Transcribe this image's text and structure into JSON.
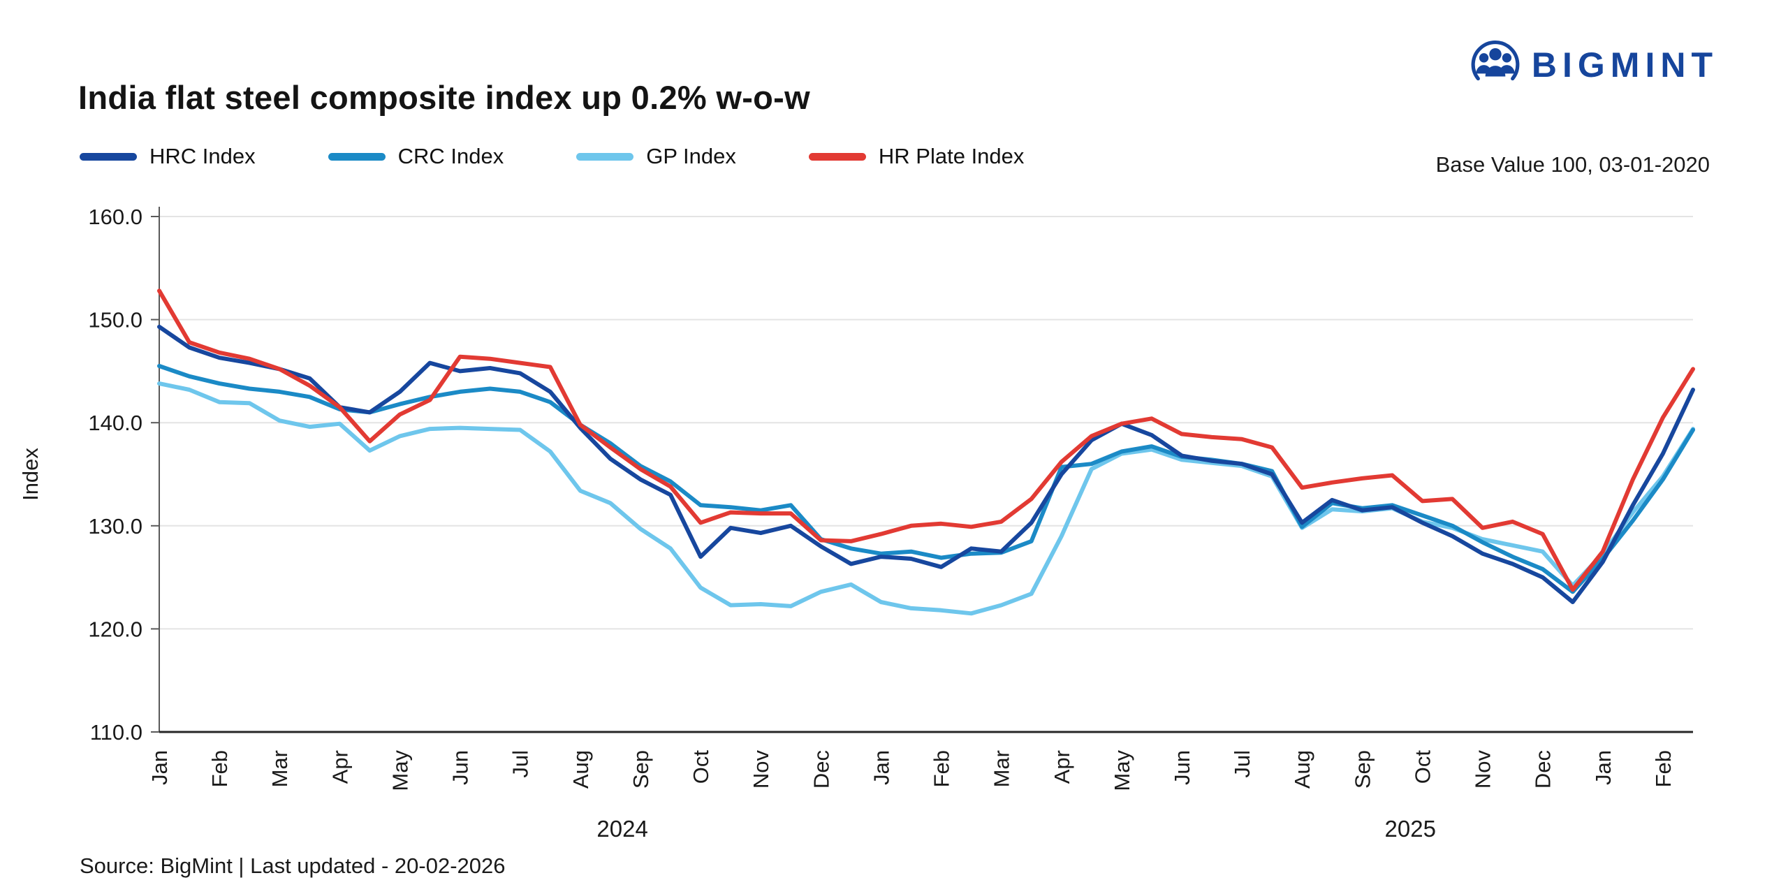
{
  "header": {
    "title": "India flat steel composite index up 0.2% w-o-w",
    "base_note": "Base Value 100, 03-01-2020"
  },
  "logo": {
    "name": "BIGMINT",
    "color": "#16459C"
  },
  "legend": {
    "items": [
      {
        "label": "HRC Index",
        "color": "#17479E"
      },
      {
        "label": "CRC Index",
        "color": "#1B8AC6"
      },
      {
        "label": "GP Index",
        "color": "#6EC6EC"
      },
      {
        "label": "HR Plate Index",
        "color": "#E23A33"
      }
    ]
  },
  "footer": {
    "text": "Source: BigMint | Last updated - 20-02-2026"
  },
  "chart_data": {
    "type": "line",
    "title": "India flat steel composite index up 0.2% w-o-w",
    "xlabel": "",
    "ylabel": "Index",
    "ylim": [
      110,
      160
    ],
    "yticks": [
      110,
      120,
      130,
      140,
      150,
      160
    ],
    "grid": true,
    "legend_position": "top-left",
    "x_unit": "months since Jan 2024 (0 = Jan 2024, 0.5 = mid-month; weekly index data)",
    "month_labels": [
      "Jan",
      "Feb",
      "Mar",
      "Apr",
      "May",
      "Jun",
      "Jul",
      "Aug",
      "Sep",
      "Oct",
      "Nov",
      "Dec",
      "Jan",
      "Feb",
      "Mar",
      "Apr",
      "May",
      "Jun",
      "Jul",
      "Aug",
      "Sep",
      "Oct",
      "Nov",
      "Dec",
      "Jan",
      "Feb"
    ],
    "year_labels": [
      {
        "label": "2024",
        "center_index": 7.7
      },
      {
        "label": "2025",
        "center_index": 20.8
      }
    ],
    "x": [
      0,
      0.5,
      1,
      1.5,
      2,
      2.5,
      3,
      3.5,
      4,
      4.5,
      5,
      5.5,
      6,
      6.5,
      7,
      7.5,
      8,
      8.5,
      9,
      9.5,
      10,
      10.5,
      11,
      11.5,
      12,
      12.5,
      13,
      13.5,
      14,
      14.5,
      15,
      15.5,
      16,
      16.5,
      17,
      17.5,
      18,
      18.5,
      19,
      19.5,
      20,
      20.5,
      21,
      21.5,
      22,
      22.5,
      23,
      23.5,
      24,
      24.5,
      25,
      25.5
    ],
    "series": [
      {
        "name": "HRC Index",
        "color": "#17479E",
        "values": [
          149.3,
          147.3,
          146.3,
          145.8,
          145.2,
          144.3,
          141.5,
          141.0,
          143.0,
          145.8,
          145.0,
          145.3,
          144.8,
          143.0,
          139.5,
          136.5,
          134.5,
          133.0,
          127.0,
          129.8,
          129.3,
          130.0,
          128.0,
          126.3,
          127.0,
          126.8,
          126.0,
          127.8,
          127.5,
          130.3,
          135.0,
          138.3,
          139.9,
          138.8,
          136.8,
          136.3,
          136.0,
          135.0,
          130.3,
          132.5,
          131.5,
          131.8,
          130.3,
          129.0,
          127.3,
          126.3,
          125.0,
          122.6,
          126.5,
          132.0,
          137.0,
          143.2
        ]
      },
      {
        "name": "CRC Index",
        "color": "#1B8AC6",
        "values": [
          145.5,
          144.5,
          143.8,
          143.3,
          143.0,
          142.5,
          141.3,
          141.0,
          141.8,
          142.5,
          143.0,
          143.3,
          143.0,
          142.0,
          139.8,
          138.0,
          135.8,
          134.3,
          132.0,
          131.8,
          131.5,
          132.0,
          128.7,
          127.8,
          127.3,
          127.5,
          126.9,
          127.3,
          127.4,
          128.5,
          135.7,
          136.0,
          137.2,
          137.7,
          136.7,
          136.4,
          136.0,
          135.3,
          129.9,
          132.2,
          131.7,
          132.0,
          131.0,
          130.0,
          128.4,
          127.0,
          125.8,
          123.6,
          126.8,
          130.5,
          134.5,
          139.3
        ]
      },
      {
        "name": "GP Index",
        "color": "#6EC6EC",
        "values": [
          143.8,
          143.2,
          142.0,
          141.9,
          140.2,
          139.6,
          139.9,
          137.3,
          138.7,
          139.4,
          139.5,
          139.4,
          139.3,
          137.2,
          133.4,
          132.2,
          129.7,
          127.8,
          124.0,
          122.3,
          122.4,
          122.2,
          123.6,
          124.3,
          122.6,
          122.0,
          121.8,
          121.5,
          122.3,
          123.4,
          129.0,
          135.5,
          137.0,
          137.4,
          136.4,
          136.1,
          135.8,
          134.8,
          129.8,
          131.6,
          131.4,
          131.7,
          130.4,
          129.8,
          128.7,
          128.1,
          127.5,
          124.2,
          127.3,
          131.3,
          134.8,
          139.4
        ]
      },
      {
        "name": "HR Plate Index",
        "color": "#E23A33",
        "values": [
          152.8,
          147.8,
          146.8,
          146.2,
          145.2,
          143.6,
          141.5,
          138.2,
          140.8,
          142.2,
          146.4,
          146.2,
          145.8,
          145.4,
          139.8,
          137.6,
          135.5,
          133.8,
          130.3,
          131.3,
          131.2,
          131.2,
          128.6,
          128.5,
          129.2,
          130.0,
          130.2,
          129.9,
          130.4,
          132.6,
          136.2,
          138.7,
          139.9,
          140.4,
          138.9,
          138.6,
          138.4,
          137.6,
          133.7,
          134.2,
          134.6,
          134.9,
          132.4,
          132.6,
          129.8,
          130.4,
          129.2,
          123.8,
          127.5,
          134.5,
          140.5,
          145.2
        ]
      }
    ]
  }
}
